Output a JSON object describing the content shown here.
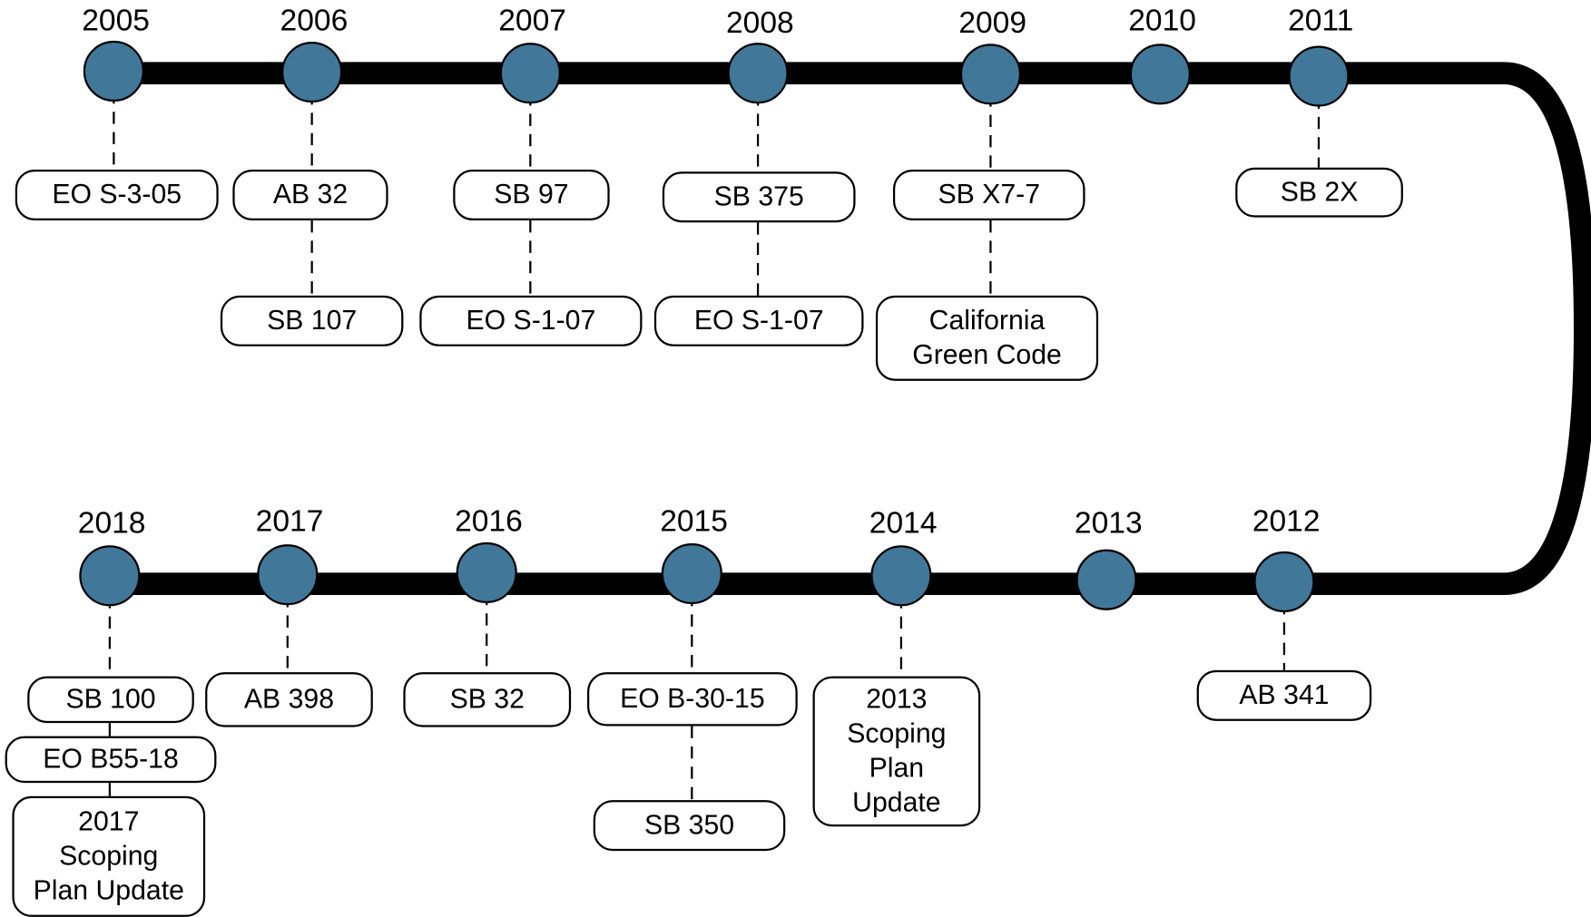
{
  "timeline": {
    "years": [
      {
        "year": "2005",
        "items": [
          {
            "lines": [
              "EO S-3-05"
            ]
          }
        ]
      },
      {
        "year": "2006",
        "items": [
          {
            "lines": [
              "AB 32"
            ]
          },
          {
            "lines": [
              "SB 107"
            ]
          }
        ]
      },
      {
        "year": "2007",
        "items": [
          {
            "lines": [
              "SB 97"
            ]
          },
          {
            "lines": [
              "EO S-1-07"
            ]
          }
        ]
      },
      {
        "year": "2008",
        "items": [
          {
            "lines": [
              "SB 375"
            ]
          },
          {
            "lines": [
              "EO S-1-07"
            ]
          }
        ]
      },
      {
        "year": "2009",
        "items": [
          {
            "lines": [
              "SB X7-7"
            ]
          },
          {
            "lines": [
              "California",
              "Green Code"
            ]
          }
        ]
      },
      {
        "year": "2010",
        "items": []
      },
      {
        "year": "2011",
        "items": [
          {
            "lines": [
              "SB 2X"
            ]
          }
        ]
      },
      {
        "year": "2012",
        "items": [
          {
            "lines": [
              "AB 341"
            ]
          }
        ]
      },
      {
        "year": "2013",
        "items": []
      },
      {
        "year": "2014",
        "items": [
          {
            "lines": [
              "2013",
              "Scoping",
              "Plan",
              "Update"
            ]
          }
        ]
      },
      {
        "year": "2015",
        "items": [
          {
            "lines": [
              "EO B-30-15"
            ]
          },
          {
            "lines": [
              "SB 350"
            ]
          }
        ]
      },
      {
        "year": "2016",
        "items": [
          {
            "lines": [
              "SB 32"
            ]
          }
        ]
      },
      {
        "year": "2017",
        "items": [
          {
            "lines": [
              "AB 398"
            ]
          }
        ]
      },
      {
        "year": "2018",
        "items": [
          {
            "lines": [
              "SB 100"
            ]
          },
          {
            "lines": [
              "EO B55-18"
            ]
          },
          {
            "lines": [
              "2017",
              "Scoping",
              "Plan Update"
            ]
          }
        ]
      }
    ]
  }
}
